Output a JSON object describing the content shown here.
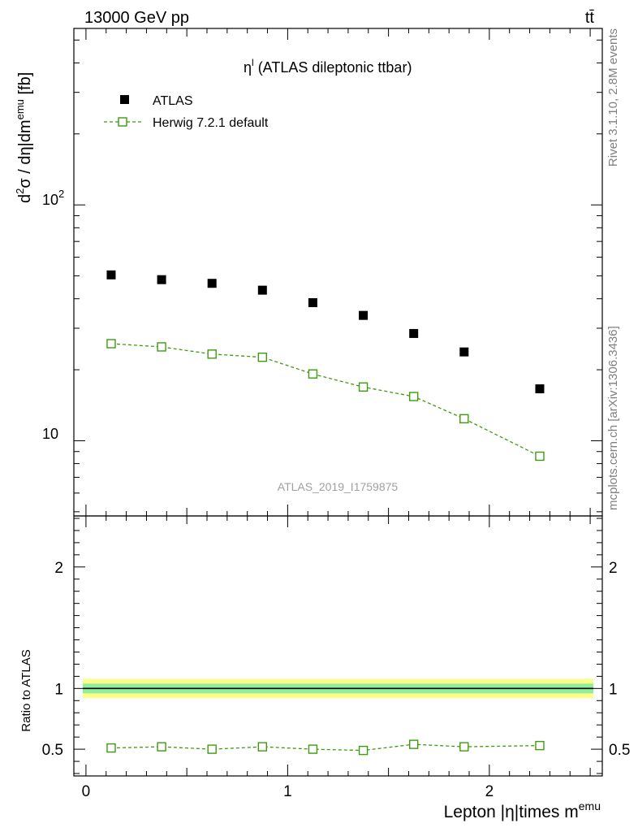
{
  "header": {
    "energy_label": "13000 GeV pp",
    "process_label": "tt̄"
  },
  "side_labels": {
    "rivet": "Rivet 3.1.10,  2.8M events",
    "mcplots": "mcplots.cern.ch [arXiv:1306.3436]"
  },
  "watermark": "ATLAS_2019_I1759875",
  "chart_data": [
    {
      "type": "scatter",
      "title": "η",
      "title_superscript": "l",
      "title_rest": " (ATLAS dileptonic ttbar)",
      "ylabel": {
        "d": "d",
        "sup1": "2",
        "mid": "σ / dη|dm",
        "sup2": "emu",
        "unit": " [fb]"
      },
      "yscale": "log",
      "ylim": [
        4.8,
        560
      ],
      "xlim": [
        -0.06,
        2.56
      ],
      "ytick_labels": [
        {
          "base": "10",
          "exp": "2",
          "value": 100
        },
        {
          "base": "10",
          "exp": "",
          "value": 10
        }
      ],
      "legend": {
        "position": "top-left",
        "entries": [
          "ATLAS",
          "Herwig 7.2.1 default"
        ]
      },
      "x": [
        0.125,
        0.375,
        0.625,
        0.875,
        1.125,
        1.375,
        1.625,
        1.875,
        2.25
      ],
      "series": [
        {
          "name": "ATLAS",
          "color": "#000000",
          "marker": "filled-square",
          "values": [
            50.5,
            48.2,
            46.5,
            43.5,
            38.5,
            34.0,
            28.5,
            23.8,
            16.6
          ]
        },
        {
          "name": "Herwig 7.2.1 default",
          "color": "#3d9b0f",
          "marker": "open-square",
          "line": "dashed",
          "values": [
            25.8,
            25.0,
            23.3,
            22.6,
            19.2,
            16.9,
            15.4,
            12.4,
            8.6
          ]
        }
      ]
    },
    {
      "type": "line",
      "ylabel": "Ratio to ATLAS",
      "ylim": [
        0.28,
        2.42
      ],
      "yticks": [
        0.5,
        1,
        2
      ],
      "ytick_labels": [
        "0.5",
        "1",
        "2"
      ],
      "xticks": [
        0,
        1,
        2
      ],
      "xtick_labels": [
        "0",
        "1",
        "2"
      ],
      "xlabel": {
        "main": "Lepton |η|times m",
        "sup": "emu"
      },
      "band": {
        "inner": [
          0.96,
          1.04
        ],
        "outer": [
          0.92,
          1.08
        ],
        "inner_color": "#8fef9a",
        "outer_color": "#fdfd8a"
      },
      "x": [
        0.125,
        0.375,
        0.625,
        0.875,
        1.125,
        1.375,
        1.625,
        1.875,
        2.25
      ],
      "series": [
        {
          "name": "Herwig 7.2.1 default",
          "color": "#3d9b0f",
          "values": [
            0.51,
            0.52,
            0.5,
            0.52,
            0.5,
            0.49,
            0.54,
            0.52,
            0.53
          ]
        }
      ]
    }
  ]
}
